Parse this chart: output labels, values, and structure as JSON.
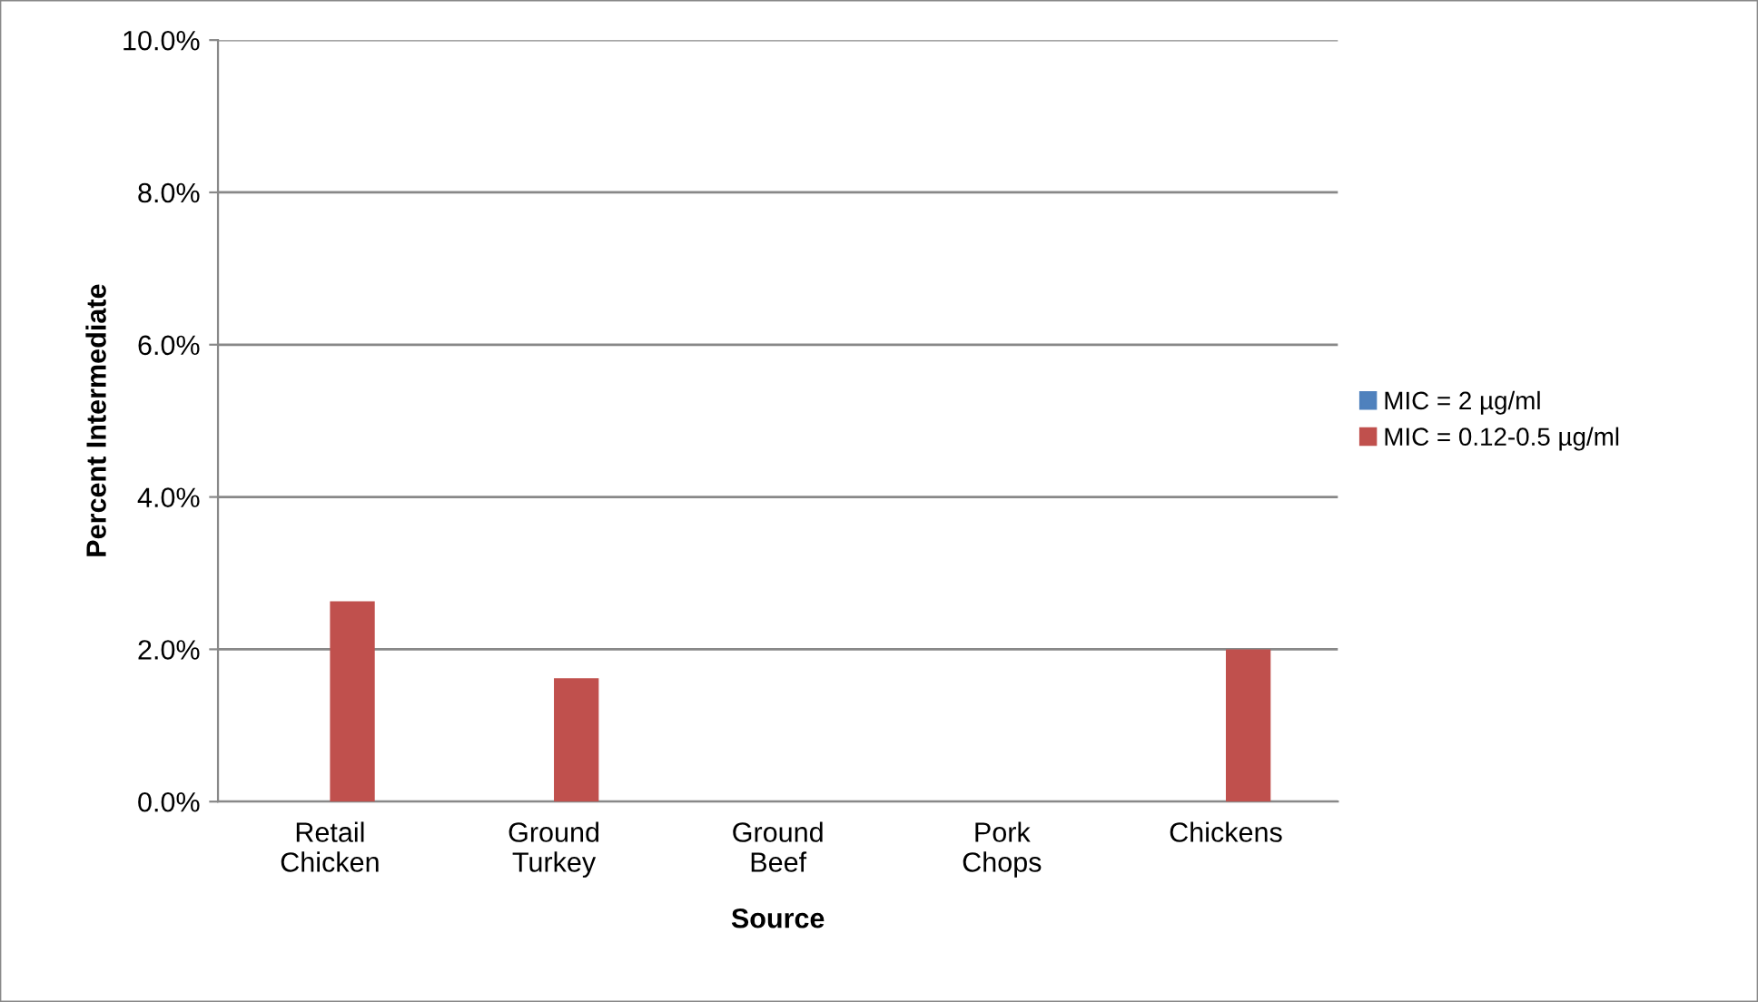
{
  "chart_data": {
    "type": "bar",
    "xlabel": "Source",
    "ylabel": "Percent Intermediate",
    "categories": [
      "Retail\nChicken",
      "Ground\nTurkey",
      "Ground\nBeef",
      "Pork\nChops",
      "Chickens"
    ],
    "series": [
      {
        "name": "MIC = 2 µg/ml",
        "color": "#4f81bd",
        "values": [
          0,
          0,
          0,
          0,
          0
        ]
      },
      {
        "name": "MIC = 0.12-0.5 µg/ml",
        "color": "#c0504d",
        "values": [
          2.63,
          1.62,
          0,
          0,
          2.0
        ]
      }
    ],
    "ylim": [
      0,
      10
    ],
    "yticks": [
      {
        "value": 0,
        "label": "0.0%"
      },
      {
        "value": 2,
        "label": "2.0%"
      },
      {
        "value": 4,
        "label": "4.0%"
      },
      {
        "value": 6,
        "label": "6.0%"
      },
      {
        "value": 8,
        "label": "8.0%"
      },
      {
        "value": 10,
        "label": "10.0%"
      }
    ],
    "grid": "y",
    "legend": "right"
  }
}
